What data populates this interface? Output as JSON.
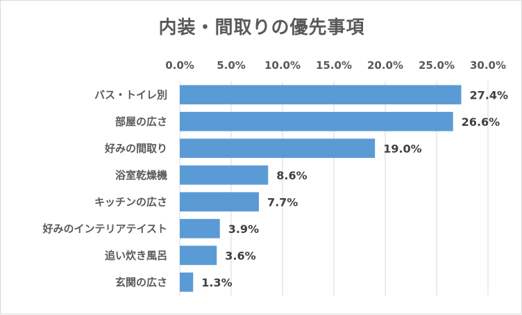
{
  "chart_data": {
    "type": "bar",
    "orientation": "horizontal",
    "title": "内装・間取りの優先事項",
    "categories": [
      "バス・トイレ別",
      "部屋の広さ",
      "好みの間取り",
      "浴室乾燥機",
      "キッチンの広さ",
      "好みのインテリアテイスト",
      "追い炊き風呂",
      "玄関の広さ"
    ],
    "values": [
      27.4,
      26.6,
      19.0,
      8.6,
      7.7,
      3.9,
      3.6,
      1.3
    ],
    "data_labels": [
      "27.4%",
      "26.6%",
      "19.0%",
      "8.6%",
      "7.7%",
      "3.9%",
      "3.6%",
      "1.3%"
    ],
    "xlim": [
      0,
      30
    ],
    "x_ticks": [
      0,
      5,
      10,
      15,
      20,
      25,
      30
    ],
    "x_tick_labels": [
      "0.0%",
      "5.0%",
      "10.0%",
      "15.0%",
      "20.0%",
      "25.0%",
      "30.0%"
    ],
    "x_axis_position": "top",
    "grid": true,
    "legend": false,
    "bar_color": "#5b9bd5",
    "grid_color": "#d9d9d9",
    "text_color": "#595959",
    "label_color": "#404040"
  }
}
